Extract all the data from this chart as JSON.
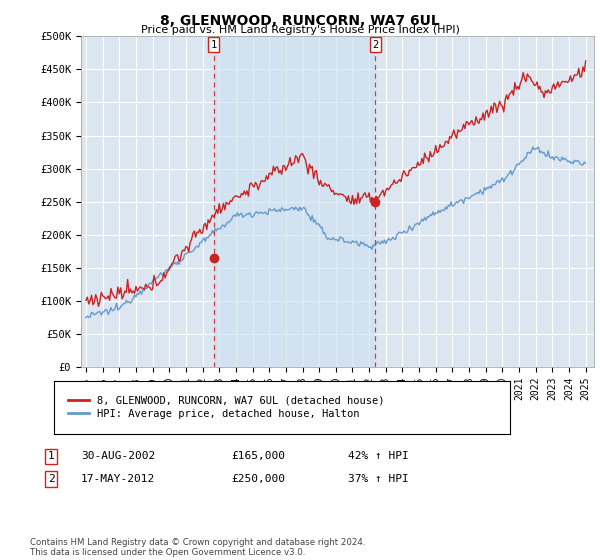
{
  "title": "8, GLENWOOD, RUNCORN, WA7 6UL",
  "subtitle": "Price paid vs. HM Land Registry's House Price Index (HPI)",
  "ytick_values": [
    0,
    50000,
    100000,
    150000,
    200000,
    250000,
    300000,
    350000,
    400000,
    450000,
    500000
  ],
  "ylim": [
    0,
    500000
  ],
  "xlim_start": 1994.7,
  "xlim_end": 2025.5,
  "background_color": "#dce6f1",
  "shaded_color": "#ccddf0",
  "grid_color": "#ffffff",
  "red_line_color": "#cc2222",
  "blue_line_color": "#6699cc",
  "sale1_x": 2002.66,
  "sale1_y": 165000,
  "sale2_x": 2012.38,
  "sale2_y": 250000,
  "legend_label1": "8, GLENWOOD, RUNCORN, WA7 6UL (detached house)",
  "legend_label2": "HPI: Average price, detached house, Halton",
  "table_row1": [
    "1",
    "30-AUG-2002",
    "£165,000",
    "42% ↑ HPI"
  ],
  "table_row2": [
    "2",
    "17-MAY-2012",
    "£250,000",
    "37% ↑ HPI"
  ],
  "footer": "Contains HM Land Registry data © Crown copyright and database right 2024.\nThis data is licensed under the Open Government Licence v3.0.",
  "xtick_years": [
    1995,
    1996,
    1997,
    1998,
    1999,
    2000,
    2001,
    2002,
    2003,
    2004,
    2005,
    2006,
    2007,
    2008,
    2009,
    2010,
    2011,
    2012,
    2013,
    2014,
    2015,
    2016,
    2017,
    2018,
    2019,
    2020,
    2021,
    2022,
    2023,
    2024,
    2025
  ]
}
